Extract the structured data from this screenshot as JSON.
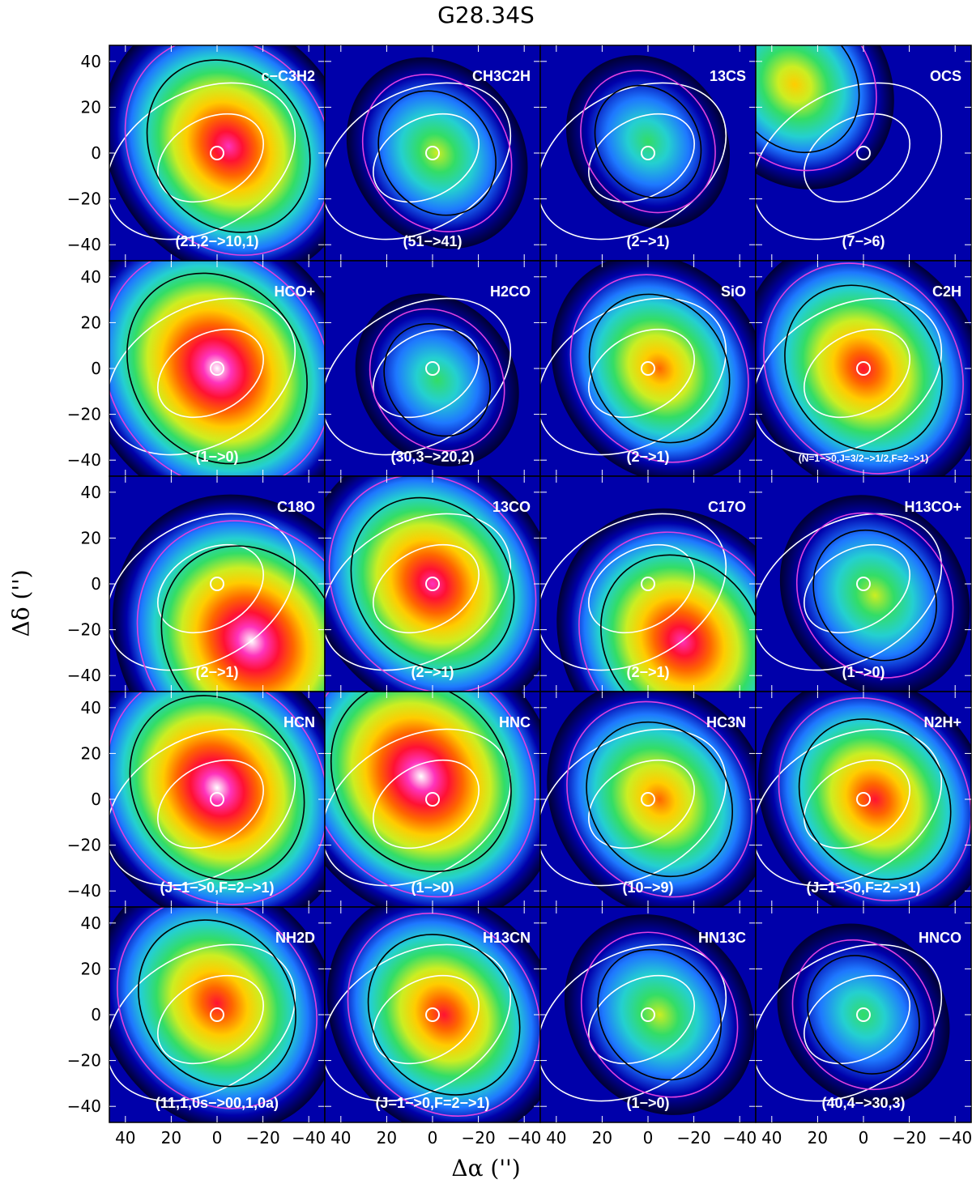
{
  "chart_data": {
    "type": "heatmap",
    "title": "G28.34S",
    "xlabel": "Δα ('')",
    "ylabel": "Δδ ('')",
    "xlim": [
      47,
      -47
    ],
    "ylim": [
      -47,
      47
    ],
    "xticks": [
      "40",
      "20",
      "0",
      "−20",
      "−40"
    ],
    "yticks": [
      "40",
      "20",
      "0",
      "−20",
      "−40"
    ],
    "colormap": [
      "#000033",
      "#0000aa",
      "#1e78ff",
      "#24d0d0",
      "#33dd66",
      "#ccee22",
      "#ffcc00",
      "#ff6600",
      "#ff1133",
      "#ff33bb",
      "#ffffff"
    ],
    "panels": [
      {
        "molecule": "c−C3H2",
        "transition": "(21,2−>10,1)",
        "peak": [
          -5,
          3
        ],
        "intensity": 0.85
      },
      {
        "molecule": "CH3C2H",
        "transition": "(51−>41)",
        "peak": [
          -2,
          0
        ],
        "intensity": 0.45
      },
      {
        "molecule": "13CS",
        "transition": "(2−>1)",
        "peak": [
          0,
          5
        ],
        "intensity": 0.35
      },
      {
        "molecule": "OCS",
        "transition": "(7−>6)",
        "peak": [
          30,
          30
        ],
        "intensity": 0.55
      },
      {
        "molecule": "HCO+",
        "transition": "(1−>0)",
        "peak": [
          0,
          0
        ],
        "intensity": 1.0
      },
      {
        "molecule": "H2CO",
        "transition": "(30,3−>20,2)",
        "peak": [
          -2,
          -5
        ],
        "intensity": 0.35
      },
      {
        "molecule": "SiO",
        "transition": "(2−>1)",
        "peak": [
          -5,
          0
        ],
        "intensity": 0.65
      },
      {
        "molecule": "C2H",
        "transition": "(N=1−>0,J=3/2−>1/2,F=2−>1)",
        "peak": [
          0,
          0
        ],
        "intensity": 0.8
      },
      {
        "molecule": "C18O",
        "transition": "(2−>1)",
        "peak": [
          -15,
          -25
        ],
        "intensity": 1.0
      },
      {
        "molecule": "13CO",
        "transition": "(2−>1)",
        "peak": [
          0,
          0
        ],
        "intensity": 0.85
      },
      {
        "molecule": "C17O",
        "transition": "(2−>1)",
        "peak": [
          -15,
          -25
        ],
        "intensity": 0.85
      },
      {
        "molecule": "H13CO+",
        "transition": "(1−>0)",
        "peak": [
          -5,
          -5
        ],
        "intensity": 0.5
      },
      {
        "molecule": "HCN",
        "transition": "(J=1−>0,F=2−>1)",
        "peak": [
          0,
          5
        ],
        "intensity": 0.95
      },
      {
        "molecule": "HNC",
        "transition": "(1−>0)",
        "peak": [
          5,
          10
        ],
        "intensity": 1.0
      },
      {
        "molecule": "HC3N",
        "transition": "(10−>9)",
        "peak": [
          -5,
          0
        ],
        "intensity": 0.7
      },
      {
        "molecule": "N2H+",
        "transition": "(J=1−>0,F=2−>1)",
        "peak": [
          -5,
          0
        ],
        "intensity": 0.75
      },
      {
        "molecule": "NH2D",
        "transition": "(11,1,0s−>00,1,0a)",
        "peak": [
          0,
          5
        ],
        "intensity": 0.8
      },
      {
        "molecule": "H13CN",
        "transition": "(J=1−>0,F=2−>1)",
        "peak": [
          -5,
          0
        ],
        "intensity": 0.75
      },
      {
        "molecule": "HN13C",
        "transition": "(1−>0)",
        "peak": [
          -5,
          0
        ],
        "intensity": 0.5
      },
      {
        "molecule": "HNCO",
        "transition": "(40,4−>30,3)",
        "peak": [
          0,
          0
        ],
        "intensity": 0.4
      }
    ]
  }
}
